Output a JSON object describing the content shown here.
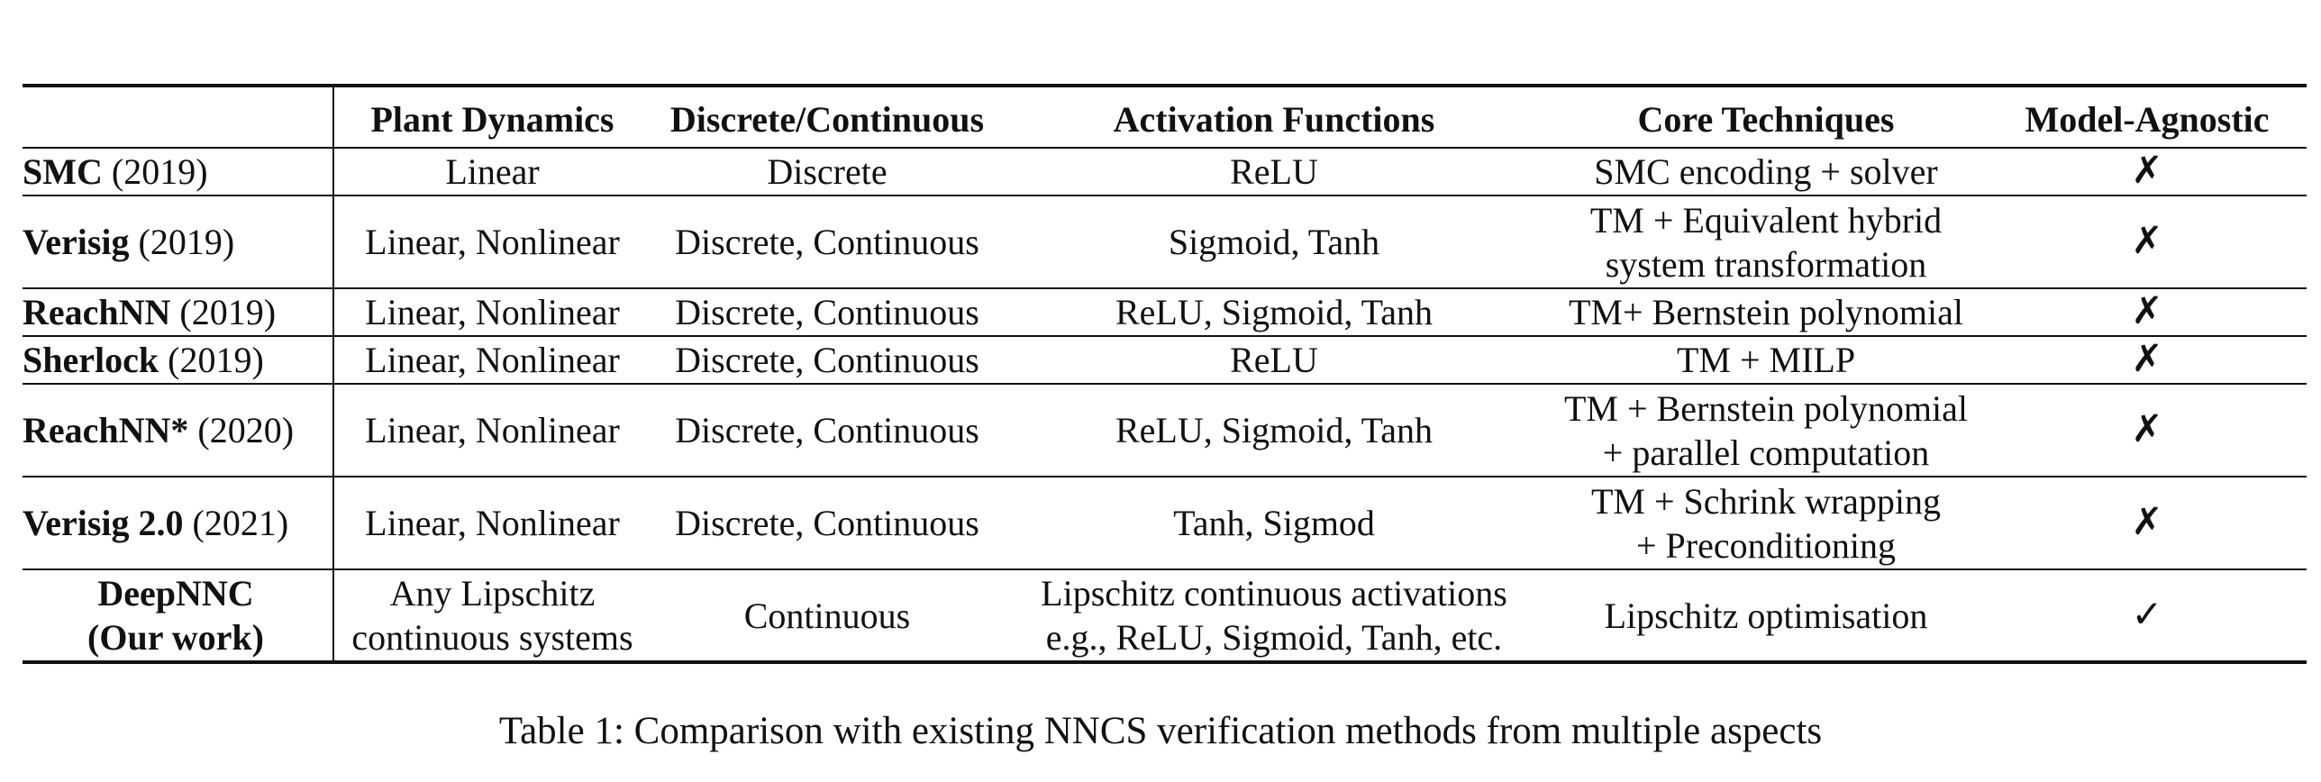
{
  "table": {
    "headers": [
      "",
      "Plant Dynamics",
      "Discrete/Continuous",
      "Activation Functions",
      "Core Techniques",
      "Model-Agnostic"
    ],
    "rows": [
      {
        "method": "SMC",
        "year": "(2019)",
        "plant": [
          "Linear"
        ],
        "time": [
          "Discrete"
        ],
        "activation": [
          "ReLU"
        ],
        "technique": [
          "SMC encoding + solver"
        ],
        "agnostic": "✗"
      },
      {
        "method": "Verisig",
        "year": "(2019)",
        "plant": [
          "Linear, Nonlinear"
        ],
        "time": [
          "Discrete, Continuous"
        ],
        "activation": [
          "Sigmoid, Tanh"
        ],
        "technique": [
          "TM + Equivalent hybrid",
          "system transformation"
        ],
        "agnostic": "✗"
      },
      {
        "method": "ReachNN",
        "year": "(2019)",
        "plant": [
          "Linear, Nonlinear"
        ],
        "time": [
          "Discrete, Continuous"
        ],
        "activation": [
          "ReLU, Sigmoid, Tanh"
        ],
        "technique": [
          "TM+ Bernstein polynomial"
        ],
        "agnostic": "✗"
      },
      {
        "method": "Sherlock",
        "year": "(2019)",
        "plant": [
          "Linear, Nonlinear"
        ],
        "time": [
          "Discrete, Continuous"
        ],
        "activation": [
          "ReLU"
        ],
        "technique": [
          "TM + MILP"
        ],
        "agnostic": "✗"
      },
      {
        "method": "ReachNN*",
        "year": "(2020)",
        "plant": [
          "Linear, Nonlinear"
        ],
        "time": [
          "Discrete, Continuous"
        ],
        "activation": [
          "ReLU, Sigmoid, Tanh"
        ],
        "technique": [
          "TM + Bernstein polynomial",
          "+ parallel computation"
        ],
        "agnostic": "✗"
      },
      {
        "method": "Verisig 2.0",
        "year": "(2021)",
        "plant": [
          "Linear, Nonlinear"
        ],
        "time": [
          "Discrete, Continuous"
        ],
        "activation": [
          "Tanh, Sigmod"
        ],
        "technique": [
          "TM + Schrink wrapping",
          "+ Preconditioning"
        ],
        "agnostic": "✗"
      },
      {
        "method": "DeepNNC",
        "method_line2": "(Our work)",
        "plant": [
          "Any Lipschitz",
          "continuous systems"
        ],
        "time": [
          "Continuous"
        ],
        "activation": [
          "Lipschitz continuous activations",
          "e.g., ReLU, Sigmoid, Tanh, etc."
        ],
        "technique": [
          "Lipschitz optimisation"
        ],
        "agnostic": "✓"
      }
    ]
  },
  "caption": "Table 1: Comparison with existing NNCS verification methods from multiple aspects"
}
